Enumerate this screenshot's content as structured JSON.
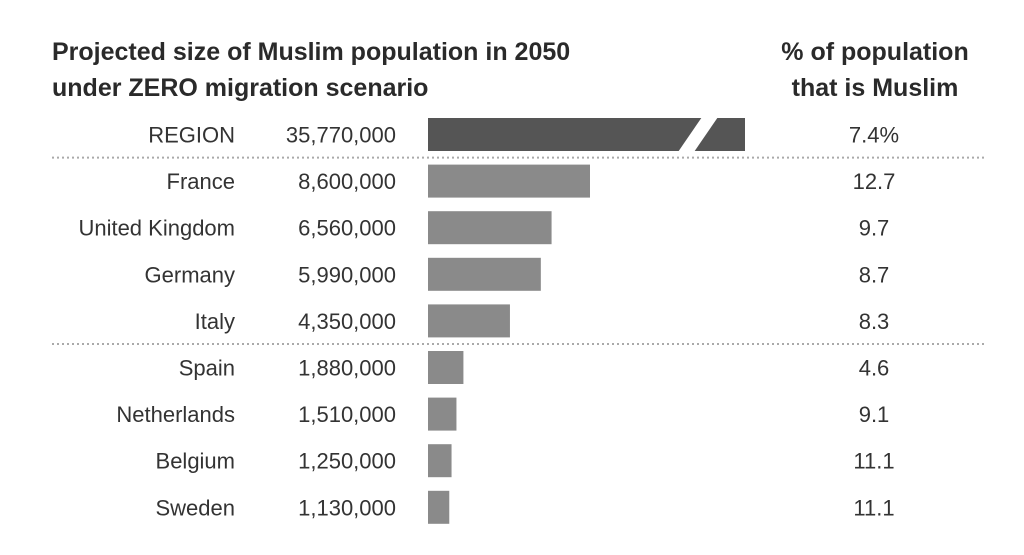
{
  "header": {
    "title_line1": "Projected size of Muslim population in 2050",
    "title_line2": "under ZERO migration scenario",
    "col_title_line1": "% of population",
    "col_title_line2": "that is Muslim"
  },
  "chart_data": {
    "type": "bar",
    "orientation": "horizontal",
    "title": "Projected size of Muslim population in 2050 under ZERO migration scenario",
    "categories": [
      "REGION",
      "France",
      "United Kingdom",
      "Germany",
      "Italy",
      "Spain",
      "Netherlands",
      "Belgium",
      "Sweden"
    ],
    "value_labels": [
      "35,770,000",
      "8,600,000",
      "6,560,000",
      "5,990,000",
      "4,350,000",
      "1,880,000",
      "1,510,000",
      "1,250,000",
      "1,130,000"
    ],
    "values": [
      35770000,
      8600000,
      6560000,
      5990000,
      4350000,
      1880000,
      1510000,
      1250000,
      1130000
    ],
    "pct_labels": [
      "7.4%",
      "12.7",
      "9.7",
      "8.7",
      "8.3",
      "4.6",
      "9.1",
      "11.1",
      "11.1"
    ],
    "pct_values": [
      7.4,
      12.7,
      9.7,
      8.7,
      8.3,
      4.6,
      9.1,
      11.1,
      11.1
    ],
    "region_bar_truncated": true,
    "separators_after": [
      0,
      4
    ],
    "colors": {
      "region_bar": "#555555",
      "country_bar": "#8a8a8a",
      "separator": "#aaaaaa",
      "text": "#333333"
    }
  }
}
